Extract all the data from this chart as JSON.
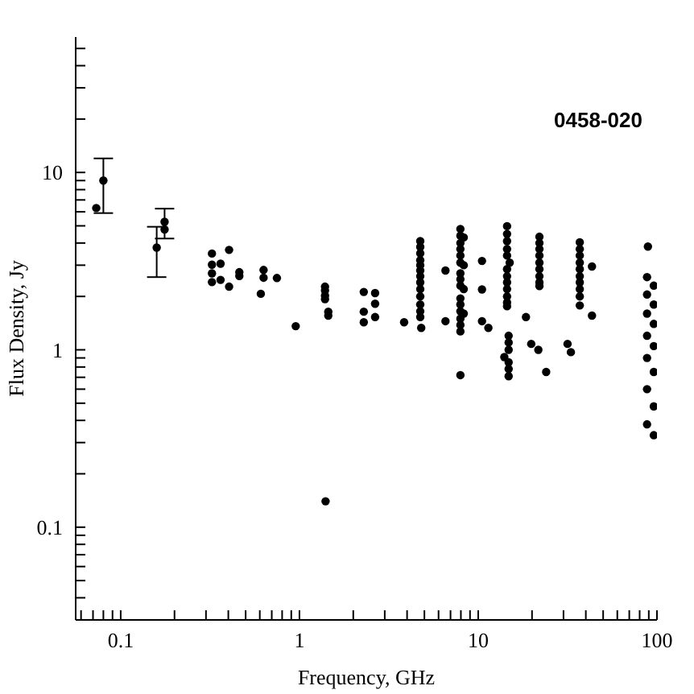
{
  "chart_data": {
    "type": "scatter",
    "title": "0458-020",
    "xlabel": "Frequency, GHz",
    "ylabel": "Flux Density, Jy",
    "log": "xy",
    "grid": false,
    "marker": "circle",
    "xlim": [
      0.056,
      100
    ],
    "ylim": [
      0.03,
      58
    ],
    "xticks": [
      {
        "value": 0.06,
        "label": null
      },
      {
        "value": 0.07,
        "label": null
      },
      {
        "value": 0.08,
        "label": null
      },
      {
        "value": 0.09,
        "label": null
      },
      0.1,
      {
        "value": 0.2,
        "label": null
      },
      {
        "value": 0.3,
        "label": null
      },
      {
        "value": 0.4,
        "label": null
      },
      {
        "value": 0.5,
        "label": null
      },
      {
        "value": 0.6,
        "label": null
      },
      {
        "value": 0.7,
        "label": null
      },
      {
        "value": 0.8,
        "label": null
      },
      {
        "value": 0.9,
        "label": null
      },
      1,
      {
        "value": 2,
        "label": null
      },
      {
        "value": 3,
        "label": null
      },
      {
        "value": 4,
        "label": null
      },
      {
        "value": 5,
        "label": null
      },
      {
        "value": 6,
        "label": null
      },
      {
        "value": 7,
        "label": null
      },
      {
        "value": 8,
        "label": null
      },
      {
        "value": 9,
        "label": null
      },
      10,
      {
        "value": 20,
        "label": null
      },
      {
        "value": 30,
        "label": null
      },
      {
        "value": 40,
        "label": null
      },
      {
        "value": 50,
        "label": null
      },
      {
        "value": 60,
        "label": null
      },
      {
        "value": 70,
        "label": null
      },
      {
        "value": 80,
        "label": null
      },
      {
        "value": 90,
        "label": null
      },
      100
    ],
    "yticks": [
      {
        "value": 0.04,
        "label": null
      },
      {
        "value": 0.05,
        "label": null
      },
      {
        "value": 0.06,
        "label": null
      },
      {
        "value": 0.07,
        "label": null
      },
      {
        "value": 0.08,
        "label": null
      },
      {
        "value": 0.09,
        "label": null
      },
      0.1,
      {
        "value": 0.2,
        "label": null
      },
      {
        "value": 0.3,
        "label": null
      },
      {
        "value": 0.4,
        "label": null
      },
      {
        "value": 0.5,
        "label": null
      },
      {
        "value": 0.6,
        "label": null
      },
      {
        "value": 0.7,
        "label": null
      },
      {
        "value": 0.8,
        "label": null
      },
      {
        "value": 0.9,
        "label": null
      },
      1,
      {
        "value": 2,
        "label": null
      },
      {
        "value": 3,
        "label": null
      },
      {
        "value": 4,
        "label": null
      },
      {
        "value": 5,
        "label": null
      },
      {
        "value": 6,
        "label": null
      },
      {
        "value": 7,
        "label": null
      },
      {
        "value": 8,
        "label": null
      },
      {
        "value": 9,
        "label": null
      },
      10,
      {
        "value": 20,
        "label": null
      },
      {
        "value": 30,
        "label": null
      },
      {
        "value": 40,
        "label": null
      },
      {
        "value": 50,
        "label": null
      }
    ],
    "series": [
      {
        "color": "#000000",
        "x": [
          0.08,
          0.159,
          0.176,
          0.073,
          0.176
        ],
        "values": [
          9.0,
          3.77,
          5.27,
          6.3,
          4.77
        ],
        "errors": [
          [
            5.9,
            12.0
          ],
          [
            2.57,
            4.94
          ],
          [
            4.24,
            6.25
          ],
          null,
          null
        ]
      },
      {
        "color": "#000000",
        "x": [
          0.324,
          0.324,
          0.324,
          0.324,
          0.362,
          0.362,
          0.404,
          0.404,
          0.461,
          0.461,
          0.608,
          0.63,
          0.63,
          0.748,
          0.953
        ],
        "values": [
          3.49,
          3.02,
          2.7,
          2.41,
          3.06,
          2.48,
          3.66,
          2.27,
          2.74,
          2.61,
          2.07,
          2.82,
          2.55,
          2.54,
          1.36
        ]
      },
      {
        "color": "#000000",
        "x": [
          1.39,
          1.39,
          1.39,
          1.39,
          1.45,
          1.45,
          1.4,
          2.29,
          2.29,
          2.29,
          2.65,
          2.65,
          2.65,
          3.85
        ],
        "values": [
          2.27,
          2.16,
          2.02,
          1.93,
          1.64,
          1.56,
          0.14,
          2.12,
          1.64,
          1.43,
          2.09,
          1.82,
          1.53,
          1.43
        ]
      },
      {
        "color": "#000000",
        "x": [
          4.74,
          4.74,
          4.74,
          4.74,
          4.74,
          4.74,
          4.74,
          4.74,
          4.74,
          4.74,
          4.74,
          4.74,
          4.74,
          4.8,
          6.56,
          6.56
        ],
        "values": [
          4.1,
          3.8,
          3.5,
          3.2,
          3.0,
          2.8,
          2.6,
          2.4,
          2.2,
          2.0,
          1.8,
          1.65,
          1.53,
          1.33,
          2.8,
          1.45
        ]
      },
      {
        "color": "#000000",
        "x": [
          7.95,
          7.95,
          7.95,
          7.95,
          7.95,
          7.95,
          7.95,
          7.95,
          7.95,
          7.95,
          7.95,
          7.95,
          7.95,
          7.95,
          7.95,
          7.95,
          8.3,
          8.3,
          8.3,
          8.3
        ],
        "values": [
          4.8,
          4.4,
          4.0,
          3.7,
          3.4,
          3.1,
          2.7,
          2.5,
          2.3,
          1.95,
          1.8,
          1.65,
          1.5,
          1.38,
          1.27,
          0.72,
          4.3,
          3.0,
          2.2,
          1.6
        ]
      },
      {
        "color": "#000000",
        "x": [
          10.5,
          10.5,
          10.5,
          11.4,
          14.5,
          14.5,
          14.5,
          14.5,
          14.5,
          14.5,
          14.5,
          14.5,
          14.5,
          14.5,
          14.5,
          14.5,
          15,
          14.8,
          14.8,
          14.8,
          14.8,
          14.8,
          14.8,
          14
        ],
        "values": [
          3.17,
          2.19,
          1.45,
          1.33,
          4.98,
          4.5,
          4.1,
          3.7,
          3.4,
          2.85,
          2.6,
          2.4,
          2.2,
          2.0,
          1.85,
          1.76,
          3.1,
          1.2,
          1.1,
          1.0,
          0.85,
          0.78,
          0.71,
          0.91
        ]
      },
      {
        "color": "#000000",
        "x": [
          18.5,
          22,
          22,
          22,
          22,
          22,
          22,
          22,
          22,
          22,
          19.8,
          21.7,
          24,
          31.6,
          33
        ],
        "values": [
          1.53,
          4.34,
          4.0,
          3.7,
          3.4,
          3.1,
          2.85,
          2.6,
          2.4,
          2.29,
          1.08,
          1.0,
          0.75,
          1.08,
          0.97
        ]
      },
      {
        "color": "#000000",
        "x": [
          37,
          37,
          37,
          37,
          37,
          37,
          37,
          37,
          37,
          37,
          43.3,
          43.3
        ],
        "values": [
          4.04,
          3.7,
          3.4,
          3.1,
          2.85,
          2.6,
          2.4,
          2.2,
          2.0,
          1.78,
          2.95,
          1.56
        ]
      },
      {
        "color": "#000000",
        "x": [
          89,
          88,
          96,
          88,
          96,
          88,
          96,
          88,
          96,
          88,
          96,
          88,
          96,
          88,
          96
        ],
        "values": [
          3.82,
          2.57,
          2.3,
          2.05,
          1.8,
          1.6,
          1.4,
          1.2,
          1.05,
          0.9,
          0.75,
          0.6,
          0.48,
          0.38,
          0.33
        ]
      }
    ]
  }
}
